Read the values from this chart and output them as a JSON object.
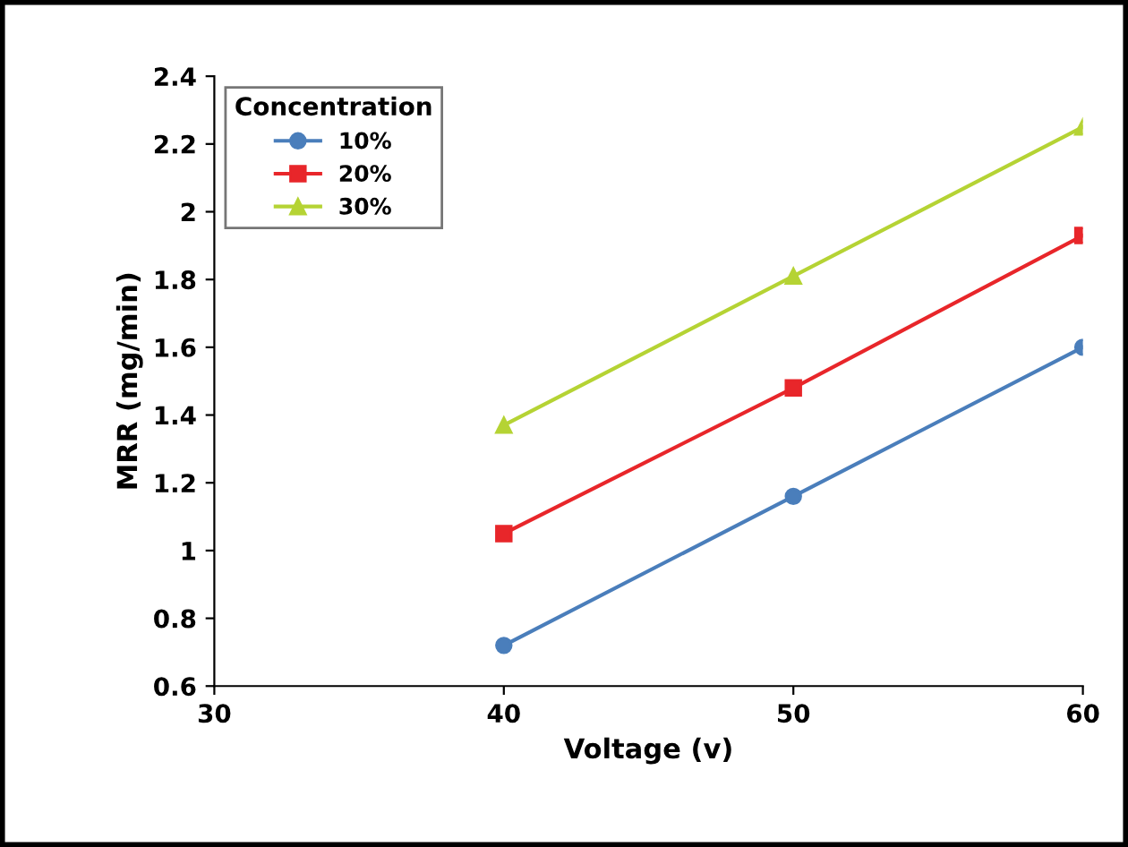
{
  "chart_data": {
    "type": "line",
    "xlabel": "Voltage (v)",
    "ylabel": "MRR (mg/min)",
    "legend_title": "Concentration",
    "x": [
      40,
      50,
      60
    ],
    "series": [
      {
        "name": "10%",
        "color": "#4a7ebb",
        "marker": "circle",
        "values": [
          0.72,
          1.16,
          1.6
        ]
      },
      {
        "name": "20%",
        "color": "#e8262a",
        "marker": "square",
        "values": [
          1.05,
          1.48,
          1.93
        ]
      },
      {
        "name": "30%",
        "color": "#b5d334",
        "marker": "triangle",
        "values": [
          1.37,
          1.81,
          2.25
        ]
      }
    ],
    "xlim": [
      30,
      60
    ],
    "xticks": [
      30,
      40,
      50,
      60
    ],
    "ylim": [
      0.6,
      2.4
    ],
    "yticks": [
      0.6,
      0.8,
      1,
      1.2,
      1.4,
      1.6,
      1.8,
      2,
      2.2,
      2.4
    ],
    "grid": false,
    "legend": "top left",
    "line_style": "solid"
  }
}
